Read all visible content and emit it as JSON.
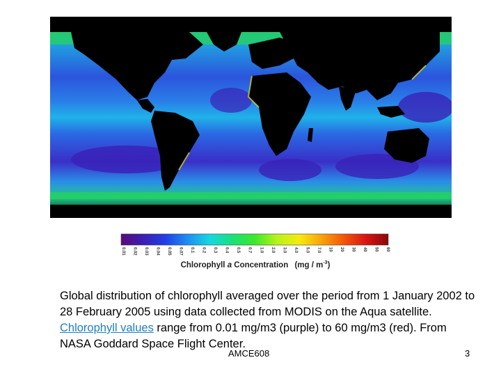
{
  "colorbar": {
    "tick_labels": [
      "0.01",
      "0.02",
      "0.03",
      "0.04",
      "0.05",
      "0.07",
      "0.1",
      "0.2",
      "0.3",
      "0.4",
      "0.5",
      "0.7",
      "1.0",
      "2.0",
      "3.0",
      "4.0",
      "5.0",
      "7.0",
      "10",
      "20",
      "30",
      "40",
      "50",
      "60"
    ],
    "title_prefix": "Chlorophyll ",
    "title_italic": "a",
    "title_suffix": " Concentration",
    "units": "(mg / m",
    "units_exp": "-3",
    "units_close": ")",
    "gradient": [
      "#5a0a7a",
      "#3b1fb3",
      "#2040e8",
      "#1f8ff0",
      "#16d8e0",
      "#19e07a",
      "#3ce82b",
      "#b8f21a",
      "#f5ea0e",
      "#f9a30a",
      "#f2560a",
      "#d81414",
      "#8a0808"
    ]
  },
  "colors": {
    "land": "#000000",
    "ocean_low": "#2c3ed8",
    "ocean_mid": "#1faef0",
    "ocean_high": "#25d85a",
    "ocean_very_high": "#f0e020"
  },
  "caption": {
    "before": "Global distribution of chlorophyll averaged over the period from 1 January 2002 to 28 February 2005 using data collected from MODIS on the Aqua satellite. ",
    "link": "Chlorophyll values",
    "after": " range from 0.01 mg/m3 (purple) to 60 mg/m3 (red). From NASA Goddard Space Flight Center."
  },
  "footer": "AMCE608",
  "page_number": "3"
}
